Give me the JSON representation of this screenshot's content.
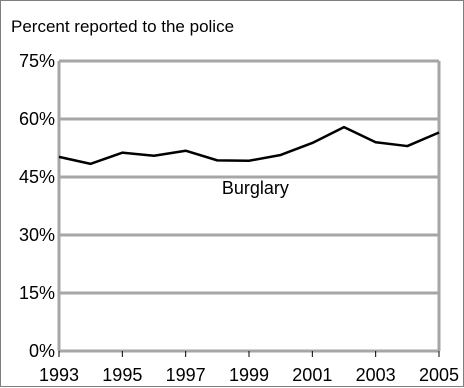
{
  "chart_data": {
    "type": "line",
    "title": "Percent reported to the police",
    "xlabel": "",
    "ylabel": "",
    "x": [
      1993,
      1994,
      1995,
      1996,
      1997,
      1998,
      1999,
      2000,
      2001,
      2002,
      2003,
      2004,
      2005
    ],
    "x_tick_labels": [
      "1993",
      "1995",
      "1997",
      "1999",
      "2001",
      "2003",
      "2005"
    ],
    "x_tick_values": [
      1993,
      1995,
      1997,
      1999,
      2001,
      2003,
      2005
    ],
    "xlim": [
      1993,
      2005
    ],
    "ylim": [
      0,
      75
    ],
    "y_tick_values": [
      0,
      15,
      30,
      45,
      60,
      75
    ],
    "y_tick_labels": [
      "0%",
      "15%",
      "30%",
      "45%",
      "60%",
      "75%"
    ],
    "grid": "horizontal",
    "series": [
      {
        "name": "Burglary",
        "values": [
          50.2,
          48.4,
          51.3,
          50.5,
          51.8,
          49.3,
          49.2,
          50.7,
          53.8,
          57.9,
          54.0,
          53.0,
          56.5
        ]
      }
    ],
    "annotations": [
      {
        "text": "Burglary",
        "x": 1999.2,
        "y": 40.6
      }
    ],
    "colors": {
      "grid": "#a6a6a6",
      "line": "#000000",
      "frame": "#7f7f7f"
    }
  }
}
